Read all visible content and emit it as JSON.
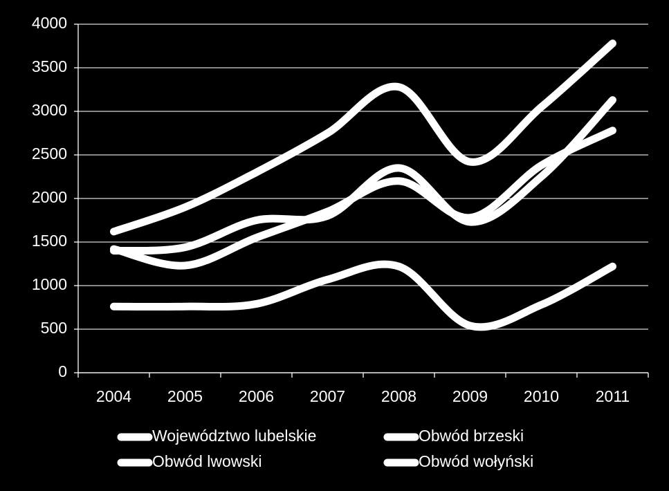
{
  "chart_data": {
    "type": "line",
    "categories": [
      "2004",
      "2005",
      "2006",
      "2007",
      "2008",
      "2009",
      "2010",
      "2011"
    ],
    "series": [
      {
        "name": "Województwo lubelskie",
        "color": "#ffffff",
        "values": [
          1620,
          1900,
          2300,
          2750,
          3280,
          2420,
          3050,
          3780
        ]
      },
      {
        "name": "Obwód brzeski",
        "color": "#ffffff",
        "values": [
          1400,
          1440,
          1750,
          1800,
          2350,
          1730,
          2250,
          3130
        ]
      },
      {
        "name": "Obwód lwowski",
        "color": "#ffffff",
        "values": [
          1420,
          1230,
          1550,
          1850,
          2200,
          1780,
          2380,
          2780
        ]
      },
      {
        "name": "Obwód wołyński",
        "color": "#ffffff",
        "values": [
          760,
          760,
          790,
          1070,
          1220,
          540,
          780,
          1220
        ]
      }
    ],
    "ylim": [
      0,
      4000
    ],
    "yticks": [
      0,
      500,
      1000,
      1500,
      2000,
      2500,
      3000,
      3500,
      4000
    ],
    "grid": true,
    "smooth": true,
    "legend": "bottom"
  }
}
